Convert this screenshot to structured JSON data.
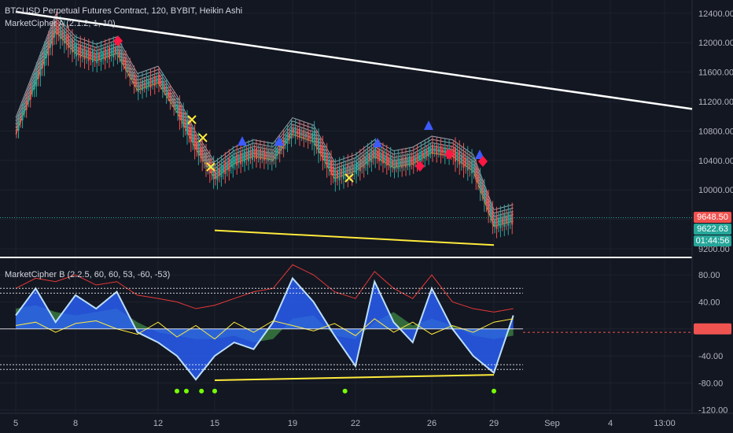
{
  "header": {
    "title": "BTCUSD Perpetual Futures Contract, 120, BYBIT, Heikin Ashi",
    "indicator_a": "MarketCipher A (2.1.2, 1, 10)",
    "indicator_b": "MarketCipher B (2.2.5, 60, 60, 53, -60, -53)"
  },
  "price_tags": {
    "last_high": "9648.50",
    "last": "9622.63",
    "countdown": "01:44:56"
  },
  "colors": {
    "background": "#131722",
    "bullish": "#26a69a",
    "bearish": "#ef5350",
    "trendline": "#ffffff",
    "support": "#ffeb3b",
    "wave_blue": "#2962ff",
    "money_flow_green": "#4caf50",
    "money_flow_red": "#e53935",
    "buy_dot": "#76ff03"
  },
  "chart_data": [
    {
      "type": "line",
      "panel": "price",
      "title": "BTCUSD Perpetual Futures Contract, 120, BYBIT, Heikin Ashi",
      "y_axis_ticks": [
        9200.0,
        9600.0,
        10000.0,
        10400.0,
        10800.0,
        11200.0,
        11600.0,
        12000.0,
        12400.0
      ],
      "y_axis_tick_labels": [
        "9200.00",
        "9600.00",
        "10000.00",
        "10400.00",
        "10800.00",
        "11200.00",
        "11600.00",
        "12000.00",
        "12400.00"
      ],
      "ylim": [
        9050,
        12580
      ],
      "x_axis_labels": [
        "5",
        "8",
        "12",
        "15",
        "19",
        "22",
        "26",
        "29",
        "Sep",
        "4",
        "13:00"
      ],
      "series": [
        {
          "values": [
            {
              "x": "5",
              "y": 10800
            },
            {
              "x": "6",
              "y": 11500
            },
            {
              "x": "7",
              "y": 12200
            },
            {
              "x": "8",
              "y": 11900
            },
            {
              "x": "9",
              "y": 11800
            },
            {
              "x": "10",
              "y": 11900
            },
            {
              "x": "11",
              "y": 11400
            },
            {
              "x": "12",
              "y": 11500
            },
            {
              "x": "13",
              "y": 11100
            },
            {
              "x": "14",
              "y": 10600
            },
            {
              "x": "15",
              "y": 10200
            },
            {
              "x": "16",
              "y": 10400
            },
            {
              "x": "17",
              "y": 10500
            },
            {
              "x": "18",
              "y": 10450
            },
            {
              "x": "19",
              "y": 10800
            },
            {
              "x": "20",
              "y": 10700
            },
            {
              "x": "21",
              "y": 10200
            },
            {
              "x": "22",
              "y": 10300
            },
            {
              "x": "23",
              "y": 10500
            },
            {
              "x": "24",
              "y": 10350
            },
            {
              "x": "25",
              "y": 10400
            },
            {
              "x": "26",
              "y": 10550
            },
            {
              "x": "27",
              "y": 10500
            },
            {
              "x": "28",
              "y": 10300
            },
            {
              "x": "29",
              "y": 9550
            },
            {
              "x": "30",
              "y": 9620
            }
          ]
        }
      ],
      "trendlines": [
        {
          "from": {
            "x": "5",
            "y": 12420
          },
          "to": {
            "x": "5 Sep",
            "y": 11100
          }
        },
        {
          "from": {
            "x": "15",
            "y": 9450
          },
          "to": {
            "x": "29",
            "y": 9250
          }
        }
      ]
    },
    {
      "type": "area",
      "panel": "oscillator",
      "title": "MarketCipher B (2.2.5, 60, 60, 53, -60, -53)",
      "y_axis_ticks": [
        -120.0,
        -80.0,
        -40.0,
        0.0,
        40.0,
        80.0
      ],
      "y_axis_tick_labels": [
        "-120.00",
        "-80.00",
        "-40.00",
        "0.00",
        "40.00",
        "80.00"
      ],
      "ylim": [
        -125,
        100
      ],
      "levels": [
        60,
        53,
        -53,
        -60,
        0
      ],
      "series": [
        {
          "values": [
            {
              "x": "5",
              "y": 20
            },
            {
              "x": "6",
              "y": 60
            },
            {
              "x": "7",
              "y": 10
            },
            {
              "x": "8",
              "y": 50
            },
            {
              "x": "9",
              "y": 30
            },
            {
              "x": "10",
              "y": 55
            },
            {
              "x": "11",
              "y": -5
            },
            {
              "x": "12",
              "y": -20
            },
            {
              "x": "13",
              "y": -40
            },
            {
              "x": "14",
              "y": -75
            },
            {
              "x": "15",
              "y": -40
            },
            {
              "x": "16",
              "y": -20
            },
            {
              "x": "17",
              "y": -30
            },
            {
              "x": "18",
              "y": 10
            },
            {
              "x": "19",
              "y": 75
            },
            {
              "x": "20",
              "y": 40
            },
            {
              "x": "21",
              "y": -10
            },
            {
              "x": "22",
              "y": -55
            },
            {
              "x": "23",
              "y": 70
            },
            {
              "x": "24",
              "y": 10
            },
            {
              "x": "25",
              "y": -20
            },
            {
              "x": "26",
              "y": 60
            },
            {
              "x": "27",
              "y": 0
            },
            {
              "x": "28",
              "y": -40
            },
            {
              "x": "29",
              "y": -65
            },
            {
              "x": "30",
              "y": 20
            }
          ]
        }
      ],
      "trendlines": [
        {
          "from": {
            "x": "15",
            "y": -76
          },
          "to": {
            "x": "29",
            "y": -68
          }
        }
      ],
      "buy_dots_x": [
        "13",
        "13.5",
        "14.3",
        "15",
        "21.5",
        "29"
      ]
    }
  ]
}
